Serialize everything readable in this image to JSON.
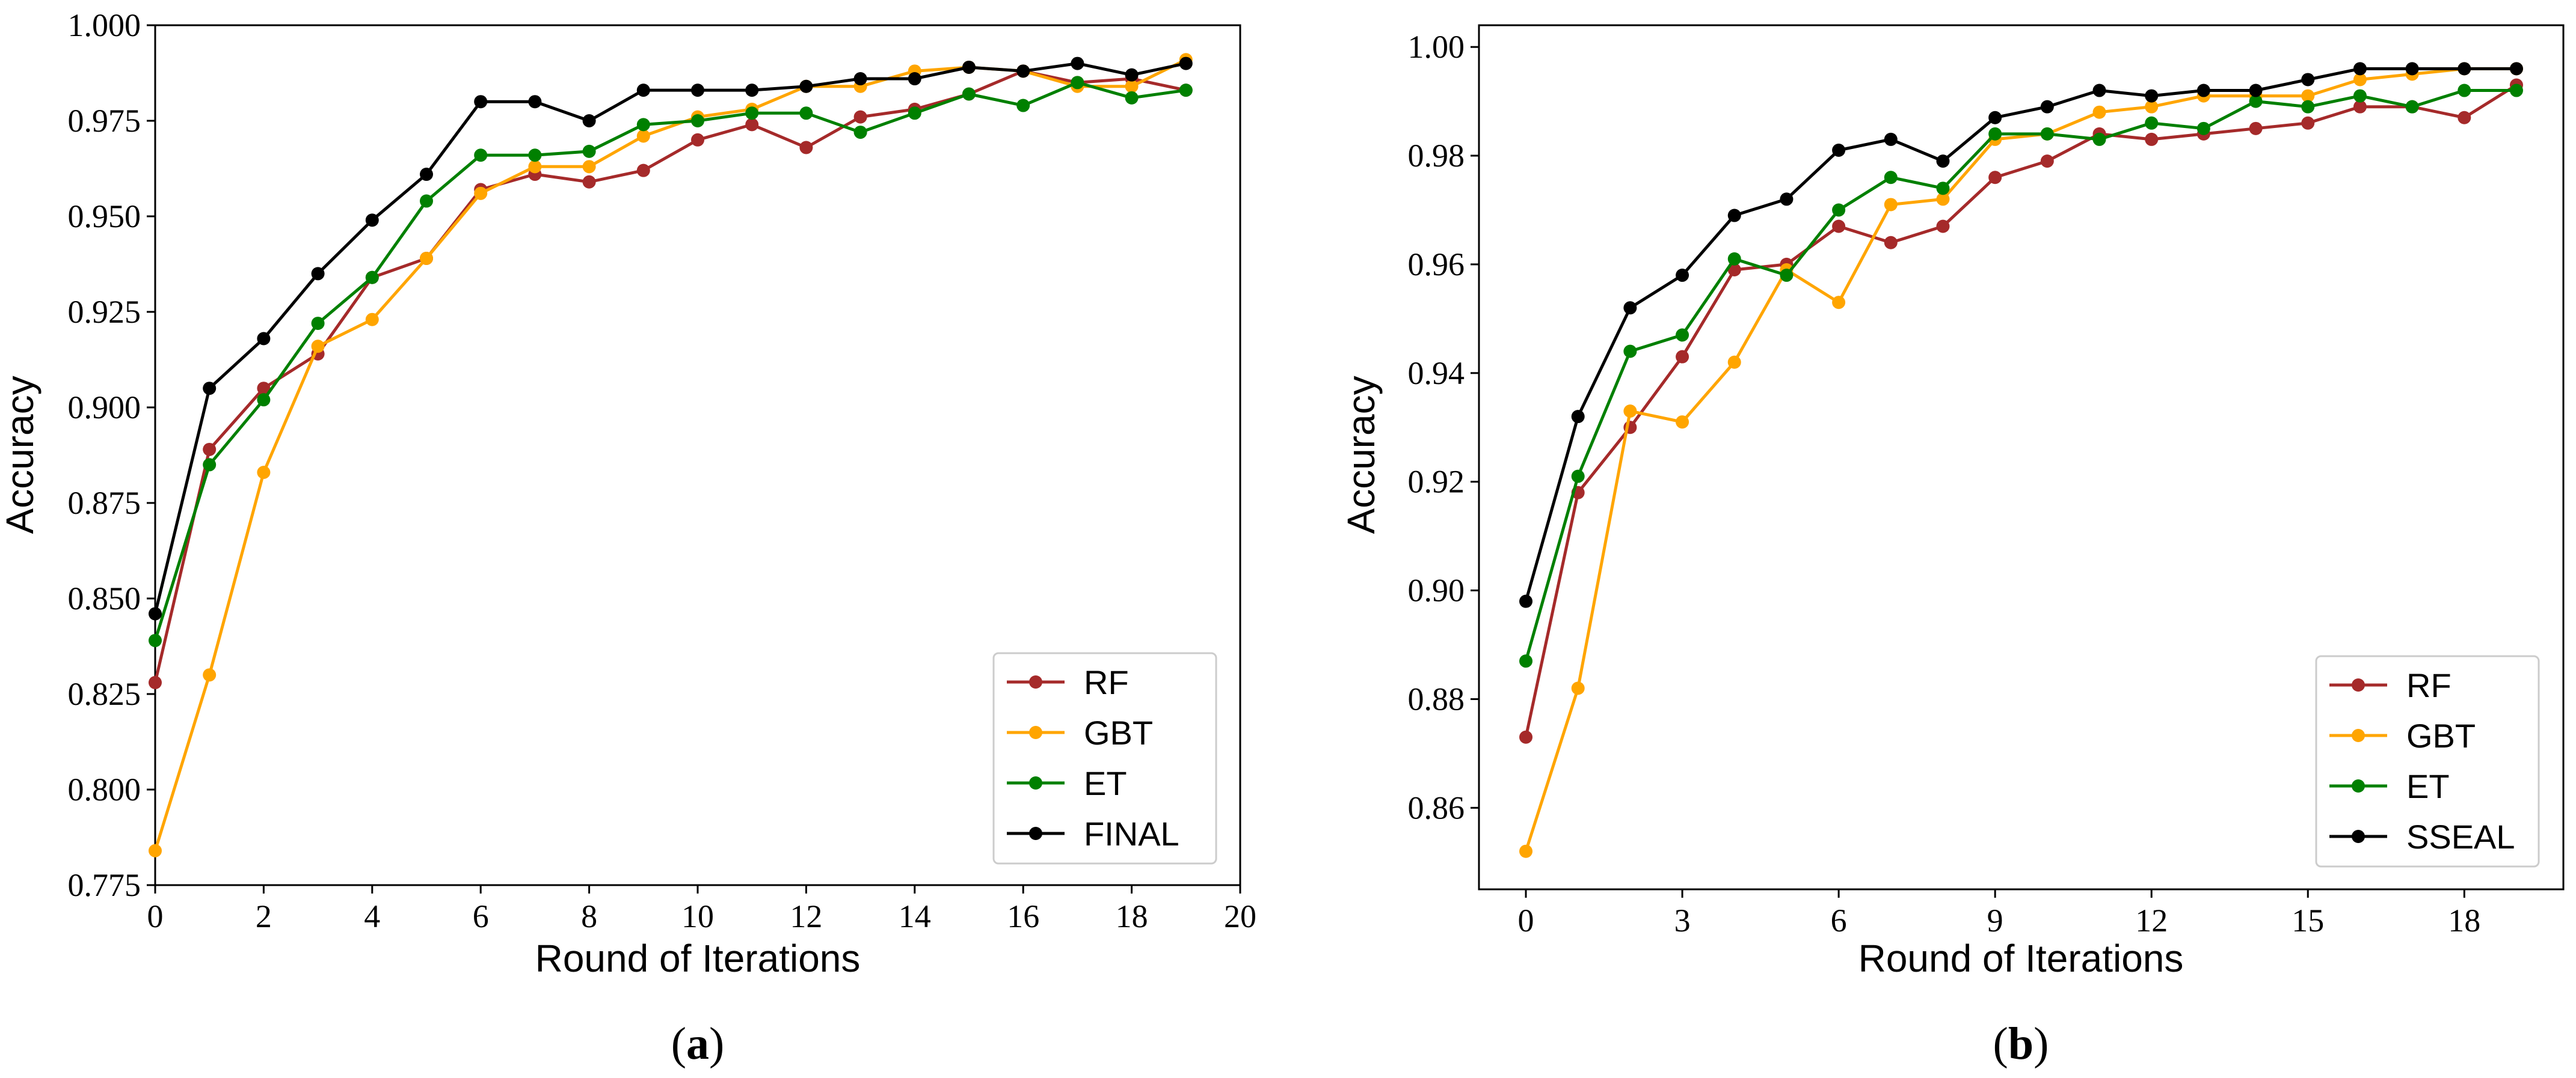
{
  "figure": {
    "panels": [
      "a",
      "b"
    ]
  },
  "chart_data": [
    {
      "id": "a",
      "type": "line",
      "caption_letter": "a",
      "caption_open": "(",
      "caption_close": ")",
      "xlabel": "Round of Iterations",
      "ylabel": "Accuracy",
      "xlim": [
        0,
        20
      ],
      "ylim": [
        0.775,
        1.0
      ],
      "xticks": [
        0,
        2,
        4,
        6,
        8,
        10,
        12,
        14,
        16,
        18,
        20
      ],
      "yticks": [
        0.775,
        0.8,
        0.825,
        0.85,
        0.875,
        0.9,
        0.925,
        0.95,
        0.975,
        1.0
      ],
      "yticks_labels": [
        "0.775",
        "0.800",
        "0.825",
        "0.850",
        "0.875",
        "0.900",
        "0.925",
        "0.950",
        "0.975",
        "1.000"
      ],
      "legend_position": "lower-right",
      "x": [
        0,
        1,
        2,
        3,
        4,
        5,
        6,
        7,
        8,
        9,
        10,
        11,
        12,
        13,
        14,
        15,
        16,
        17,
        18,
        19
      ],
      "series": [
        {
          "name": "RF",
          "color": "#a52a2a",
          "values": [
            0.828,
            0.889,
            0.905,
            0.914,
            0.934,
            0.939,
            0.957,
            0.961,
            0.959,
            0.962,
            0.97,
            0.974,
            0.968,
            0.976,
            0.978,
            0.982,
            0.988,
            0.985,
            0.986,
            0.983
          ]
        },
        {
          "name": "GBT",
          "color": "#ffa500",
          "values": [
            0.784,
            0.83,
            0.883,
            0.916,
            0.923,
            0.939,
            0.956,
            0.963,
            0.963,
            0.971,
            0.976,
            0.978,
            0.984,
            0.984,
            0.988,
            0.989,
            0.988,
            0.984,
            0.984,
            0.991
          ]
        },
        {
          "name": "ET",
          "color": "#008000",
          "values": [
            0.839,
            0.885,
            0.902,
            0.922,
            0.934,
            0.954,
            0.966,
            0.966,
            0.967,
            0.974,
            0.975,
            0.977,
            0.977,
            0.972,
            0.977,
            0.982,
            0.979,
            0.985,
            0.981,
            0.983
          ]
        },
        {
          "name": "FINAL",
          "color": "#000000",
          "values": [
            0.846,
            0.905,
            0.918,
            0.935,
            0.949,
            0.961,
            0.98,
            0.98,
            0.975,
            0.983,
            0.983,
            0.983,
            0.984,
            0.986,
            0.986,
            0.989,
            0.988,
            0.99,
            0.987,
            0.99
          ]
        }
      ]
    },
    {
      "id": "b",
      "type": "line",
      "caption_letter": "b",
      "caption_open": "(",
      "caption_close": ")",
      "xlabel": "Round of Iterations",
      "ylabel": "Accuracy",
      "xlim": [
        -0.9,
        19.9
      ],
      "ylim": [
        0.845,
        1.004
      ],
      "xticks": [
        0,
        3,
        6,
        9,
        12,
        15,
        18
      ],
      "yticks": [
        0.86,
        0.88,
        0.9,
        0.92,
        0.94,
        0.96,
        0.98,
        1.0
      ],
      "yticks_labels": [
        "0.86",
        "0.88",
        "0.90",
        "0.92",
        "0.94",
        "0.96",
        "0.98",
        "1.00"
      ],
      "legend_position": "lower-right",
      "x": [
        0,
        1,
        2,
        3,
        4,
        5,
        6,
        7,
        8,
        9,
        10,
        11,
        12,
        13,
        14,
        15,
        16,
        17,
        18,
        19
      ],
      "series": [
        {
          "name": "RF",
          "color": "#a52a2a",
          "values": [
            0.873,
            0.918,
            0.93,
            0.943,
            0.959,
            0.96,
            0.967,
            0.964,
            0.967,
            0.976,
            0.979,
            0.984,
            0.983,
            0.984,
            0.985,
            0.986,
            0.989,
            0.989,
            0.987,
            0.993
          ]
        },
        {
          "name": "GBT",
          "color": "#ffa500",
          "values": [
            0.852,
            0.882,
            0.933,
            0.931,
            0.942,
            0.959,
            0.953,
            0.971,
            0.972,
            0.983,
            0.984,
            0.988,
            0.989,
            0.991,
            0.991,
            0.991,
            0.994,
            0.995,
            0.996,
            0.996
          ]
        },
        {
          "name": "ET",
          "color": "#008000",
          "values": [
            0.887,
            0.921,
            0.944,
            0.947,
            0.961,
            0.958,
            0.97,
            0.976,
            0.974,
            0.984,
            0.984,
            0.983,
            0.986,
            0.985,
            0.99,
            0.989,
            0.991,
            0.989,
            0.992,
            0.992
          ]
        },
        {
          "name": "SSEAL",
          "color": "#000000",
          "values": [
            0.898,
            0.932,
            0.952,
            0.958,
            0.969,
            0.972,
            0.981,
            0.983,
            0.979,
            0.987,
            0.989,
            0.992,
            0.991,
            0.992,
            0.992,
            0.994,
            0.996,
            0.996,
            0.996,
            0.996
          ]
        }
      ]
    }
  ]
}
